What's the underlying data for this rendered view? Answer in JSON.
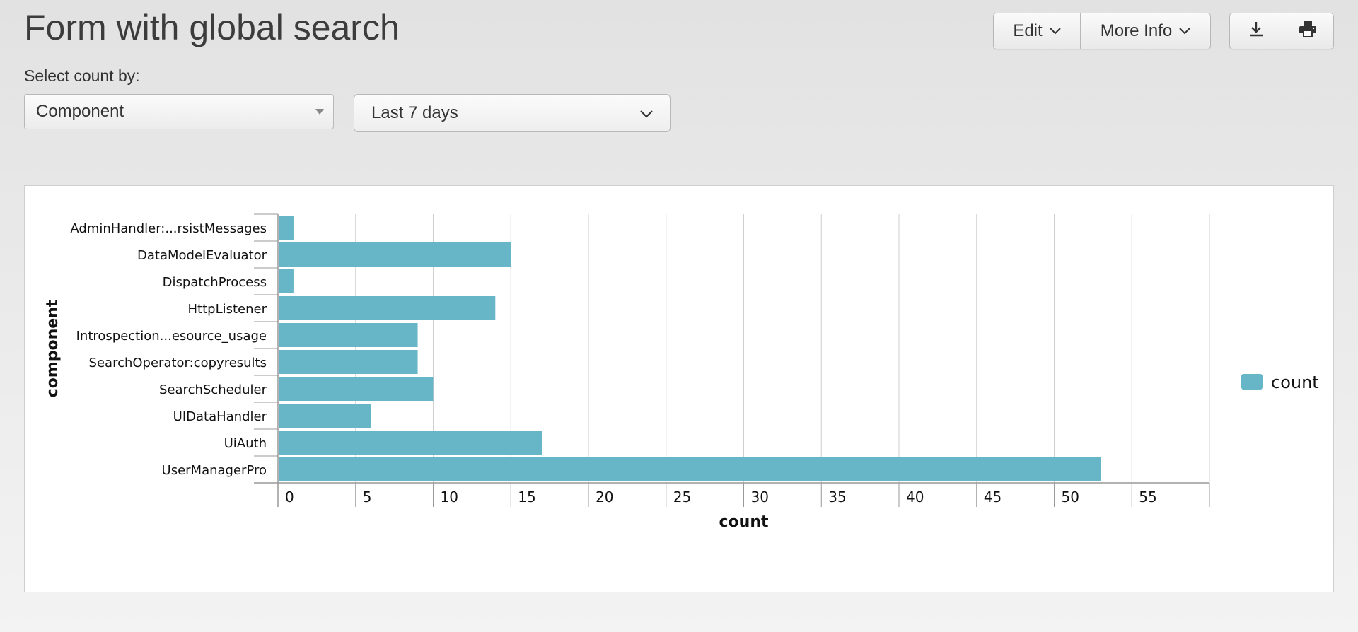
{
  "header": {
    "title": "Form with global search",
    "edit_label": "Edit",
    "more_info_label": "More Info"
  },
  "inputs": {
    "count_by_label": "Select count by:",
    "count_by_value": "Component",
    "time_range_value": "Last 7 days"
  },
  "icons": {
    "download": "download-icon",
    "print": "print-icon",
    "chevron": "chevron-down-icon",
    "select_arrow": "caret-down-icon"
  },
  "colors": {
    "bar": "#67b6c8",
    "grid": "#cfcfcf",
    "axis": "#999999"
  },
  "chart_data": {
    "type": "bar",
    "orientation": "horizontal",
    "categories": [
      "AdminHandler:...rsistMessages",
      "DataModelEvaluator",
      "DispatchProcess",
      "HttpListener",
      "Introspection...esource_usage",
      "SearchOperator:copyresults",
      "SearchScheduler",
      "UIDataHandler",
      "UiAuth",
      "UserManagerPro"
    ],
    "series": [
      {
        "name": "count",
        "values": [
          1,
          15,
          1,
          14,
          9,
          9,
          10,
          6,
          17,
          53
        ]
      }
    ],
    "xlabel": "count",
    "ylabel": "component",
    "xlim": [
      0,
      60
    ],
    "xticks": [
      0,
      5,
      10,
      15,
      20,
      25,
      30,
      35,
      40,
      45,
      50,
      55
    ],
    "grid": true,
    "legend": "right"
  }
}
